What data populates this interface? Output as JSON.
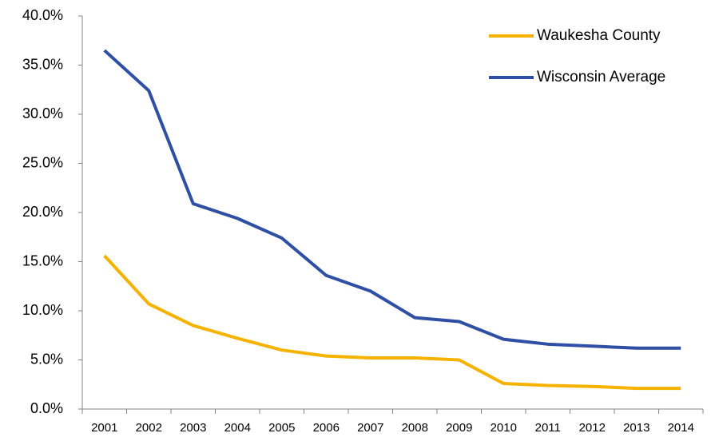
{
  "chart_data": {
    "type": "line",
    "categories": [
      "2001",
      "2002",
      "2003",
      "2004",
      "2005",
      "2006",
      "2007",
      "2008",
      "2009",
      "2010",
      "2011",
      "2012",
      "2013",
      "2014"
    ],
    "series": [
      {
        "name": "Waukesha County",
        "color": "#f5b300",
        "values": [
          15.6,
          10.7,
          8.5,
          7.2,
          6.0,
          5.4,
          5.2,
          5.2,
          5.0,
          2.6,
          2.4,
          2.3,
          2.1,
          2.1
        ]
      },
      {
        "name": "Wisconsin Average",
        "color": "#2e4fa3",
        "values": [
          36.5,
          32.4,
          20.9,
          19.4,
          17.4,
          13.6,
          12.0,
          9.3,
          8.9,
          7.1,
          6.6,
          6.4,
          6.2,
          6.2
        ]
      }
    ],
    "ylim": [
      0,
      40
    ],
    "yticks": [
      {
        "value": 0,
        "label": "0.0%"
      },
      {
        "value": 5,
        "label": "5.0%"
      },
      {
        "value": 10,
        "label": "10.0%"
      },
      {
        "value": 15,
        "label": "15.0%"
      },
      {
        "value": 20,
        "label": "20.0%"
      },
      {
        "value": 25,
        "label": "25.0%"
      },
      {
        "value": 30,
        "label": "30.0%"
      },
      {
        "value": 35,
        "label": "35.0%"
      },
      {
        "value": 40,
        "label": "40.0%"
      }
    ],
    "grid": false,
    "legend": "upper right"
  }
}
